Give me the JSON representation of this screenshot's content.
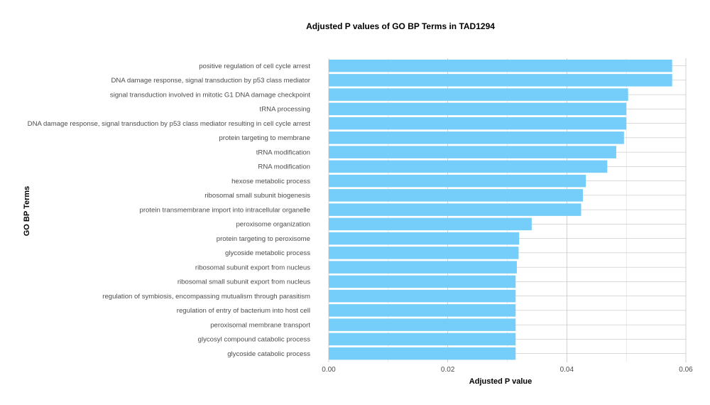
{
  "chart_data": {
    "type": "bar",
    "orientation": "horizontal",
    "title": "Adjusted P values of GO BP Terms in TAD1294",
    "xlabel": "Adjusted P value",
    "ylabel": "GO BP Terms",
    "xlim": [
      0,
      0.06
    ],
    "xticks": [
      "0.00",
      "0.02",
      "0.04",
      "0.06"
    ],
    "xtick_values": [
      0,
      0.02,
      0.04,
      0.06
    ],
    "grid": true,
    "bar_color": "#75cdfa",
    "categories": [
      "positive regulation of cell cycle arrest",
      "DNA damage response, signal transduction by p53 class mediator",
      "signal transduction involved in mitotic G1 DNA damage checkpoint",
      "tRNA processing",
      "DNA damage response, signal transduction by p53 class mediator resulting in cell cycle arrest",
      "protein targeting to membrane",
      "tRNA modification",
      "RNA modification",
      "hexose metabolic process",
      "ribosomal small subunit biogenesis",
      "protein transmembrane import into intracellular organelle",
      "peroxisome organization",
      "protein targeting to peroxisome",
      "glycoside metabolic process",
      "ribosomal subunit export from nucleus",
      "ribosomal small subunit export from nucleus",
      "regulation of symbiosis, encompassing mutualism through parasitism",
      "regulation of entry of bacterium into host cell",
      "peroxisomal membrane transport",
      "glycosyl compound catabolic process",
      "glycoside catabolic process"
    ],
    "values": [
      0.0577,
      0.0577,
      0.0503,
      0.05,
      0.05,
      0.0496,
      0.0483,
      0.0468,
      0.0432,
      0.0427,
      0.0424,
      0.0341,
      0.032,
      0.0319,
      0.0316,
      0.0314,
      0.0314,
      0.0314,
      0.0314,
      0.0314,
      0.0314
    ]
  }
}
